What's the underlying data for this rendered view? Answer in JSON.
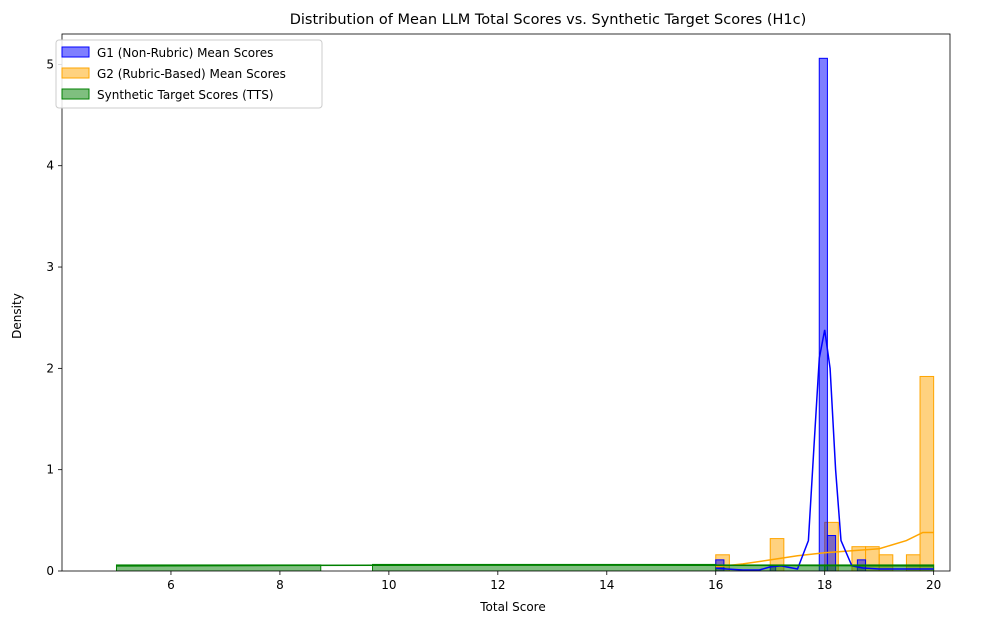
{
  "chart_data": {
    "type": "histogram",
    "title": "Distribution of Mean LLM Total Scores vs. Synthetic Target Scores (H1c)",
    "xlabel": "Total Score",
    "ylabel": "Density",
    "xlim": [
      4.0,
      20.3
    ],
    "ylim": [
      0,
      5.3
    ],
    "x_ticks": [
      6,
      8,
      10,
      12,
      14,
      16,
      18,
      20
    ],
    "y_ticks": [
      0,
      1,
      2,
      3,
      4,
      5
    ],
    "grid": false,
    "legend_position": "top-left",
    "series": [
      {
        "name": "G2 (Rubric-Based) Mean Scores",
        "fill": "#ffa500",
        "edge": "#ffa500",
        "bins": [
          {
            "x0": 16.0,
            "x1": 16.25,
            "y": 0.16
          },
          {
            "x0": 17.0,
            "x1": 17.25,
            "y": 0.32
          },
          {
            "x0": 18.0,
            "x1": 18.25,
            "y": 0.48
          },
          {
            "x0": 18.5,
            "x1": 18.75,
            "y": 0.24
          },
          {
            "x0": 18.75,
            "x1": 19.0,
            "y": 0.24
          },
          {
            "x0": 19.0,
            "x1": 19.25,
            "y": 0.16
          },
          {
            "x0": 19.5,
            "x1": 19.75,
            "y": 0.16
          },
          {
            "x0": 19.75,
            "x1": 20.0,
            "y": 1.92
          }
        ],
        "kde_x": [
          16.0,
          16.5,
          17.0,
          17.5,
          18.0,
          18.5,
          19.0,
          19.5,
          19.8,
          20.0
        ],
        "kde_y": [
          0.04,
          0.07,
          0.11,
          0.15,
          0.18,
          0.2,
          0.22,
          0.3,
          0.38,
          0.38
        ]
      },
      {
        "name": "G1 (Non-Rubric) Mean Scores",
        "fill": "#0000ff",
        "edge": "#0000ff",
        "bins": [
          {
            "x0": 16.0,
            "x1": 16.15,
            "y": 0.11
          },
          {
            "x0": 17.0,
            "x1": 17.1,
            "y": 0.05
          },
          {
            "x0": 17.9,
            "x1": 18.05,
            "y": 5.06
          },
          {
            "x0": 18.05,
            "x1": 18.2,
            "y": 0.35
          },
          {
            "x0": 18.6,
            "x1": 18.75,
            "y": 0.11
          }
        ],
        "kde_x": [
          16.0,
          16.2,
          16.5,
          16.8,
          17.0,
          17.2,
          17.5,
          17.7,
          17.8,
          17.9,
          18.0,
          18.1,
          18.2,
          18.3,
          18.5,
          18.7,
          19.0,
          20.0
        ],
        "kde_y": [
          0.03,
          0.02,
          0.01,
          0.01,
          0.04,
          0.05,
          0.02,
          0.3,
          1.2,
          2.1,
          2.38,
          2.0,
          1.0,
          0.3,
          0.05,
          0.03,
          0.02,
          0.02
        ]
      },
      {
        "name": "Synthetic Target Scores (TTS)",
        "fill": "#008000",
        "edge": "#008000",
        "bins": [
          {
            "x0": 5.0,
            "x1": 8.75,
            "y": 0.06
          },
          {
            "x0": 9.7,
            "x1": 16.0,
            "y": 0.065
          },
          {
            "x0": 16.0,
            "x1": 18.0,
            "y": 0.06
          },
          {
            "x0": 18.0,
            "x1": 20.0,
            "y": 0.06
          }
        ],
        "kde_x": [
          5.0,
          8.0,
          11.0,
          14.0,
          17.0,
          20.0
        ],
        "kde_y": [
          0.05,
          0.055,
          0.058,
          0.058,
          0.055,
          0.05
        ]
      }
    ],
    "legend_order": [
      "G1 (Non-Rubric) Mean Scores",
      "G2 (Rubric-Based) Mean Scores",
      "Synthetic Target Scores (TTS)"
    ]
  }
}
